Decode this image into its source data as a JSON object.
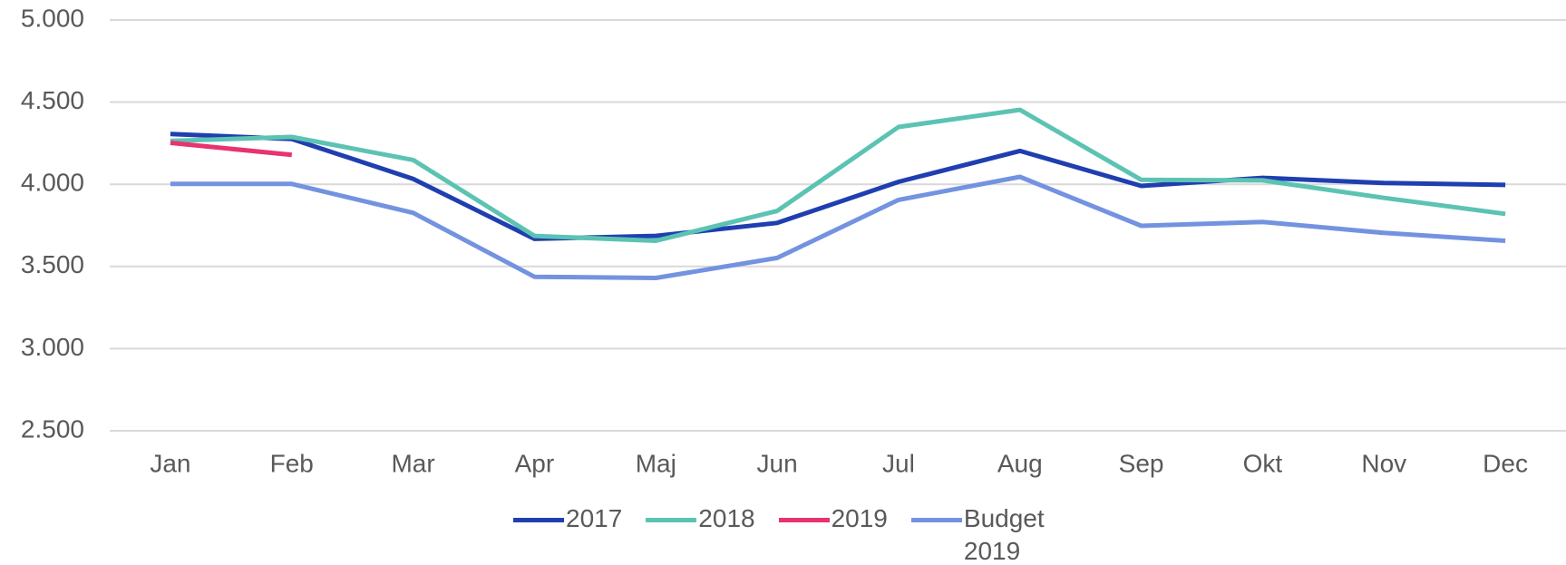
{
  "chart_data": {
    "type": "line",
    "categories": [
      "Jan",
      "Feb",
      "Mar",
      "Apr",
      "Maj",
      "Jun",
      "Jul",
      "Aug",
      "Sep",
      "Okt",
      "Nov",
      "Dec"
    ],
    "series": [
      {
        "name": "2017",
        "color": "#1f3fb0",
        "values": [
          4306,
          4276,
          4033,
          3668,
          3686,
          3765,
          4015,
          4203,
          3990,
          4039,
          4008,
          3996
        ]
      },
      {
        "name": "2018",
        "color": "#5cc3b3",
        "values": [
          4264,
          4288,
          4148,
          3686,
          3656,
          3838,
          4349,
          4453,
          4027,
          4024,
          3917,
          3820
        ]
      },
      {
        "name": "2019",
        "color": "#e8336e",
        "values": [
          4252,
          4179,
          null,
          null,
          null,
          null,
          null,
          null,
          null,
          null,
          null,
          null
        ]
      },
      {
        "name": "Budget 2019",
        "color": "#7393e0",
        "values": [
          4002,
          4002,
          3826,
          3437,
          3430,
          3552,
          3905,
          4045,
          3747,
          3771,
          3704,
          3656
        ]
      }
    ],
    "ylim": [
      2500,
      5000
    ],
    "yticks": [
      {
        "value": 2500,
        "label": "2.500"
      },
      {
        "value": 3000,
        "label": "3.000"
      },
      {
        "value": 3500,
        "label": "3.500"
      },
      {
        "value": 4000,
        "label": "4.000"
      },
      {
        "value": 4500,
        "label": "4.500"
      },
      {
        "value": 5000,
        "label": "5.000"
      }
    ],
    "grid": true,
    "legend": "bottom"
  }
}
